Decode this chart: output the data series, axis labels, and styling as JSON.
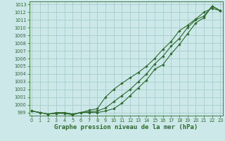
{
  "title": "Graphe pression niveau de la mer (hPa)",
  "xlabel_hours": [
    0,
    1,
    2,
    3,
    4,
    5,
    6,
    7,
    8,
    9,
    10,
    11,
    12,
    13,
    14,
    15,
    16,
    17,
    18,
    19,
    20,
    21,
    22,
    23
  ],
  "line_upper": [
    999.2,
    999.0,
    998.8,
    999.0,
    999.0,
    998.8,
    999.0,
    999.3,
    999.5,
    1001.0,
    1002.0,
    1002.8,
    1003.5,
    1004.2,
    1005.0,
    1006.0,
    1007.2,
    1008.2,
    1009.6,
    1010.3,
    1011.1,
    1012.0,
    1012.5,
    1012.2
  ],
  "line_mid": [
    999.2,
    999.0,
    998.8,
    998.9,
    998.9,
    998.8,
    999.0,
    999.0,
    999.0,
    999.2,
    999.5,
    1000.2,
    1001.2,
    1002.2,
    1003.2,
    1004.6,
    1005.2,
    1006.6,
    1007.8,
    1009.2,
    1010.6,
    1011.3,
    1012.8,
    1012.2
  ],
  "line_lower": [
    999.2,
    999.0,
    998.8,
    998.9,
    998.9,
    998.7,
    999.0,
    999.1,
    999.2,
    999.6,
    1000.4,
    1001.2,
    1002.0,
    1003.0,
    1004.0,
    1005.3,
    1006.3,
    1007.6,
    1008.6,
    1010.0,
    1011.0,
    1011.5,
    1012.8,
    1012.2
  ],
  "line_color": "#2d6a2d",
  "bg_color": "#cce8e8",
  "grid_color": "#a0c8c8",
  "ylim_min": 998.6,
  "ylim_max": 1013.4,
  "yticks": [
    999,
    1000,
    1001,
    1002,
    1003,
    1004,
    1005,
    1006,
    1007,
    1008,
    1009,
    1010,
    1011,
    1012,
    1013
  ],
  "title_fontsize": 6.5,
  "tick_fontsize": 4.8,
  "marker_size": 1.8,
  "line_width": 0.8
}
